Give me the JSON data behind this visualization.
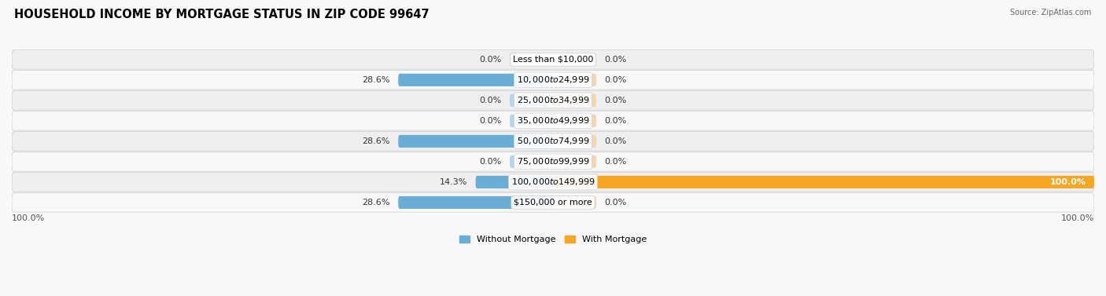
{
  "title": "HOUSEHOLD INCOME BY MORTGAGE STATUS IN ZIP CODE 99647",
  "source": "Source: ZipAtlas.com",
  "categories": [
    "Less than $10,000",
    "$10,000 to $24,999",
    "$25,000 to $34,999",
    "$35,000 to $49,999",
    "$50,000 to $74,999",
    "$75,000 to $99,999",
    "$100,000 to $149,999",
    "$150,000 or more"
  ],
  "without_mortgage": [
    0.0,
    28.6,
    0.0,
    0.0,
    28.6,
    0.0,
    14.3,
    28.6
  ],
  "with_mortgage": [
    0.0,
    0.0,
    0.0,
    0.0,
    0.0,
    0.0,
    100.0,
    0.0
  ],
  "color_without": "#6aaed6",
  "color_without_light": "#b8d4ea",
  "color_with": "#f5a623",
  "color_with_light": "#f8d4aa",
  "row_bg_odd": "#efefef",
  "row_bg_even": "#f8f8f8",
  "fig_bg": "#f8f8f8",
  "axis_label_left": "100.0%",
  "axis_label_right": "100.0%",
  "legend_without": "Without Mortgage",
  "legend_with": "With Mortgage",
  "title_fontsize": 10.5,
  "label_fontsize": 8.0,
  "value_fontsize": 8.0,
  "tick_fontsize": 8.0,
  "max_val": 100.0,
  "stub_size": 8.0
}
